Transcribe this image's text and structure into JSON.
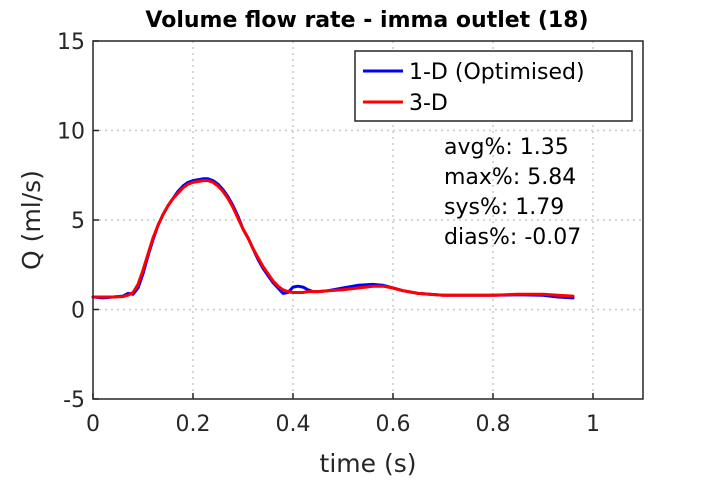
{
  "chart_data": {
    "type": "line",
    "title": "Volume flow rate - imma outlet (18)",
    "xlabel": "time (s)",
    "ylabel": "Q (ml/s)",
    "xlim": [
      0,
      1.1
    ],
    "ylim": [
      -5,
      15
    ],
    "xticks": [
      0,
      0.2,
      0.4,
      0.6,
      0.8,
      1
    ],
    "xtick_labels": [
      "0",
      "0.2",
      "0.4",
      "0.6",
      "0.8",
      "1"
    ],
    "yticks": [
      -5,
      0,
      5,
      10,
      15
    ],
    "ytick_labels": [
      "-5",
      "0",
      "5",
      "10",
      "15"
    ],
    "grid": true,
    "legend_position": "top-right",
    "series": [
      {
        "name": "1-D (Optimised)",
        "color": "#0000ff",
        "x": [
          0,
          0.02,
          0.04,
          0.06,
          0.07,
          0.08,
          0.09,
          0.1,
          0.11,
          0.12,
          0.13,
          0.14,
          0.15,
          0.16,
          0.17,
          0.18,
          0.19,
          0.2,
          0.21,
          0.22,
          0.23,
          0.24,
          0.25,
          0.26,
          0.27,
          0.28,
          0.29,
          0.3,
          0.31,
          0.32,
          0.33,
          0.34,
          0.35,
          0.36,
          0.37,
          0.38,
          0.39,
          0.4,
          0.41,
          0.42,
          0.43,
          0.44,
          0.45,
          0.47,
          0.5,
          0.53,
          0.56,
          0.58,
          0.6,
          0.62,
          0.65,
          0.7,
          0.75,
          0.8,
          0.85,
          0.9,
          0.93,
          0.96
        ],
        "y": [
          0.7,
          0.65,
          0.7,
          0.75,
          0.9,
          0.85,
          1.2,
          2.0,
          3.0,
          3.9,
          4.7,
          5.3,
          5.8,
          6.2,
          6.6,
          6.9,
          7.1,
          7.2,
          7.25,
          7.3,
          7.3,
          7.2,
          7.0,
          6.7,
          6.3,
          5.8,
          5.2,
          4.5,
          4.0,
          3.4,
          2.8,
          2.3,
          1.9,
          1.5,
          1.2,
          0.9,
          0.95,
          1.25,
          1.3,
          1.25,
          1.1,
          1.0,
          1.0,
          1.05,
          1.2,
          1.35,
          1.4,
          1.35,
          1.2,
          1.05,
          0.9,
          0.8,
          0.8,
          0.8,
          0.82,
          0.8,
          0.7,
          0.65
        ]
      },
      {
        "name": "3-D",
        "color": "#ff0000",
        "x": [
          0,
          0.02,
          0.04,
          0.06,
          0.07,
          0.08,
          0.09,
          0.1,
          0.11,
          0.12,
          0.13,
          0.14,
          0.15,
          0.16,
          0.17,
          0.18,
          0.19,
          0.2,
          0.21,
          0.22,
          0.23,
          0.24,
          0.25,
          0.26,
          0.27,
          0.28,
          0.29,
          0.3,
          0.31,
          0.32,
          0.33,
          0.34,
          0.35,
          0.36,
          0.37,
          0.38,
          0.39,
          0.4,
          0.41,
          0.42,
          0.43,
          0.44,
          0.45,
          0.47,
          0.5,
          0.53,
          0.56,
          0.58,
          0.6,
          0.62,
          0.65,
          0.7,
          0.75,
          0.8,
          0.85,
          0.9,
          0.93,
          0.96
        ],
        "y": [
          0.7,
          0.7,
          0.7,
          0.72,
          0.8,
          0.95,
          1.4,
          2.2,
          3.1,
          4.0,
          4.7,
          5.3,
          5.8,
          6.2,
          6.5,
          6.8,
          7.0,
          7.1,
          7.15,
          7.2,
          7.2,
          7.1,
          6.9,
          6.6,
          6.2,
          5.7,
          5.1,
          4.5,
          4.0,
          3.4,
          2.9,
          2.4,
          2.0,
          1.6,
          1.3,
          1.1,
          1.0,
          0.95,
          0.95,
          0.95,
          1.0,
          1.0,
          1.0,
          1.05,
          1.1,
          1.2,
          1.3,
          1.3,
          1.2,
          1.05,
          0.9,
          0.8,
          0.8,
          0.8,
          0.85,
          0.85,
          0.8,
          0.75
        ]
      }
    ],
    "annotations": [
      "avg%: 1.35",
      "max%: 5.84",
      "sys%: 1.79",
      "dias%: -0.07"
    ]
  }
}
